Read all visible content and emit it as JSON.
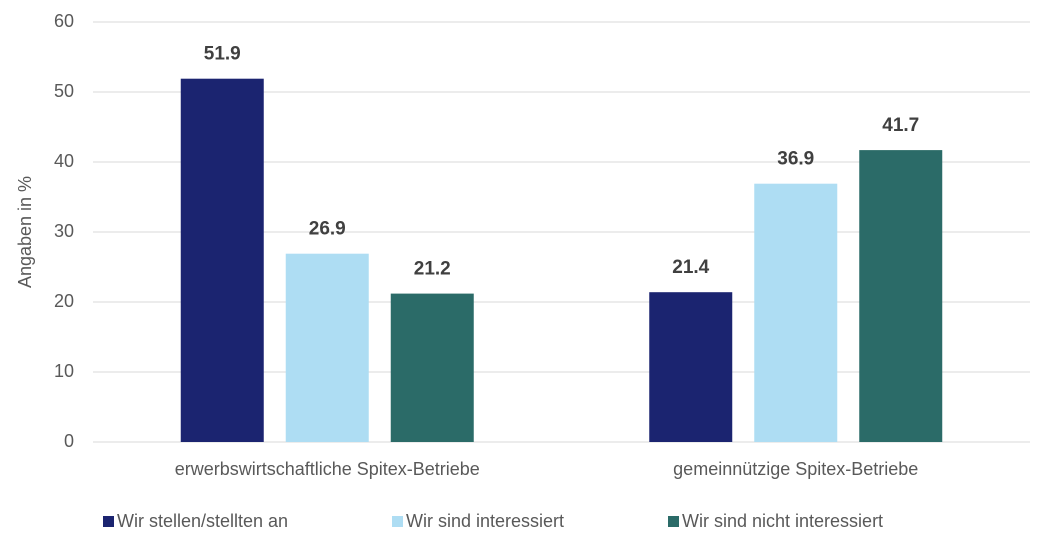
{
  "chart_data": {
    "type": "bar",
    "y_label": "Angaben in %",
    "categories": [
      "erwerbswirtschaftliche Spitex-Betriebe",
      "gemeinnützige Spitex-Betriebe"
    ],
    "series": [
      {
        "name": "Wir stellen/stellten an",
        "color": "#1b2470",
        "values": [
          51.9,
          21.4
        ]
      },
      {
        "name": "Wir sind interessiert",
        "color": "#aeddf3",
        "values": [
          26.9,
          36.9
        ]
      },
      {
        "name": "Wir sind nicht interessiert",
        "color": "#2b6b68",
        "values": [
          21.2,
          41.7
        ]
      }
    ],
    "ylim": [
      0,
      60
    ],
    "yticks": [
      0,
      10,
      20,
      30,
      40,
      50,
      60
    ],
    "grid": true,
    "legend": "bottom"
  }
}
